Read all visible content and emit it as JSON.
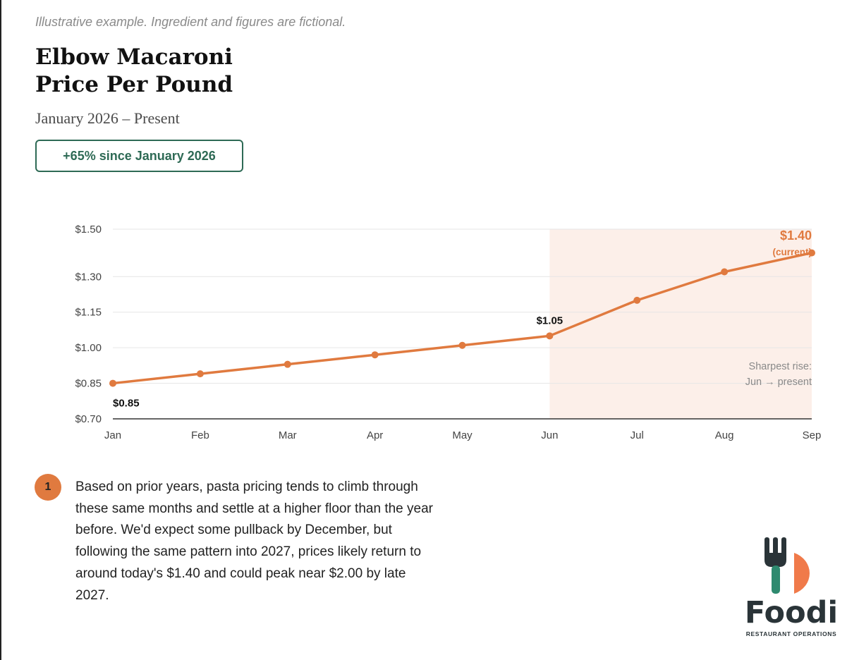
{
  "disclaimer": "Illustrative example. Ingredient and figures are fictional.",
  "header": {
    "title_line1": "Elbow Macaroni",
    "title_line2": "Price Per Pound",
    "subtitle": "January 2026 – Present"
  },
  "badge": {
    "label": "+65% since January 2026",
    "color": "#2e6a55"
  },
  "chart_data": {
    "type": "line",
    "categories": [
      "Jan",
      "Feb",
      "Mar",
      "Apr",
      "May",
      "Jun",
      "Jul",
      "Aug",
      "Sep"
    ],
    "values": [
      0.85,
      0.89,
      0.93,
      0.97,
      1.01,
      1.05,
      1.2,
      1.32,
      1.4
    ],
    "y_ticks": [
      0.7,
      0.85,
      1.0,
      1.15,
      1.3,
      1.5
    ],
    "y_tick_labels": [
      "$0.70",
      "$0.85",
      "$1.00",
      "$1.15",
      "$1.30",
      "$1.50"
    ],
    "ylim": [
      0.7,
      1.5
    ],
    "grid": true,
    "line_color": "#e07a3f",
    "highlight_color": "#fcefe9",
    "highlight_range": [
      "Jun",
      "Sep"
    ],
    "data_labels": {
      "start": "$0.85",
      "jun": "$1.05",
      "end": "$1.40",
      "end_note": "(current)"
    },
    "annotation": {
      "line1": "Sharpest rise:",
      "line2": "Jun → present"
    }
  },
  "note": {
    "number": "1",
    "text": "Based on prior years, pasta pricing tends to climb through these same months and settle at a higher floor than the year before. We'd expect some pullback by December, but following the same pattern into 2027, prices likely return to around today's $1.40 and could peak near $2.00 by late 2027."
  },
  "logo": {
    "name": "Foodi",
    "tagline": "RESTAURANT OPERATIONS",
    "fork_color": "#2e8a6f",
    "fork_dark": "#2a3438",
    "plate_color": "#f07a4a",
    "icon": "fork-plate-icon"
  }
}
